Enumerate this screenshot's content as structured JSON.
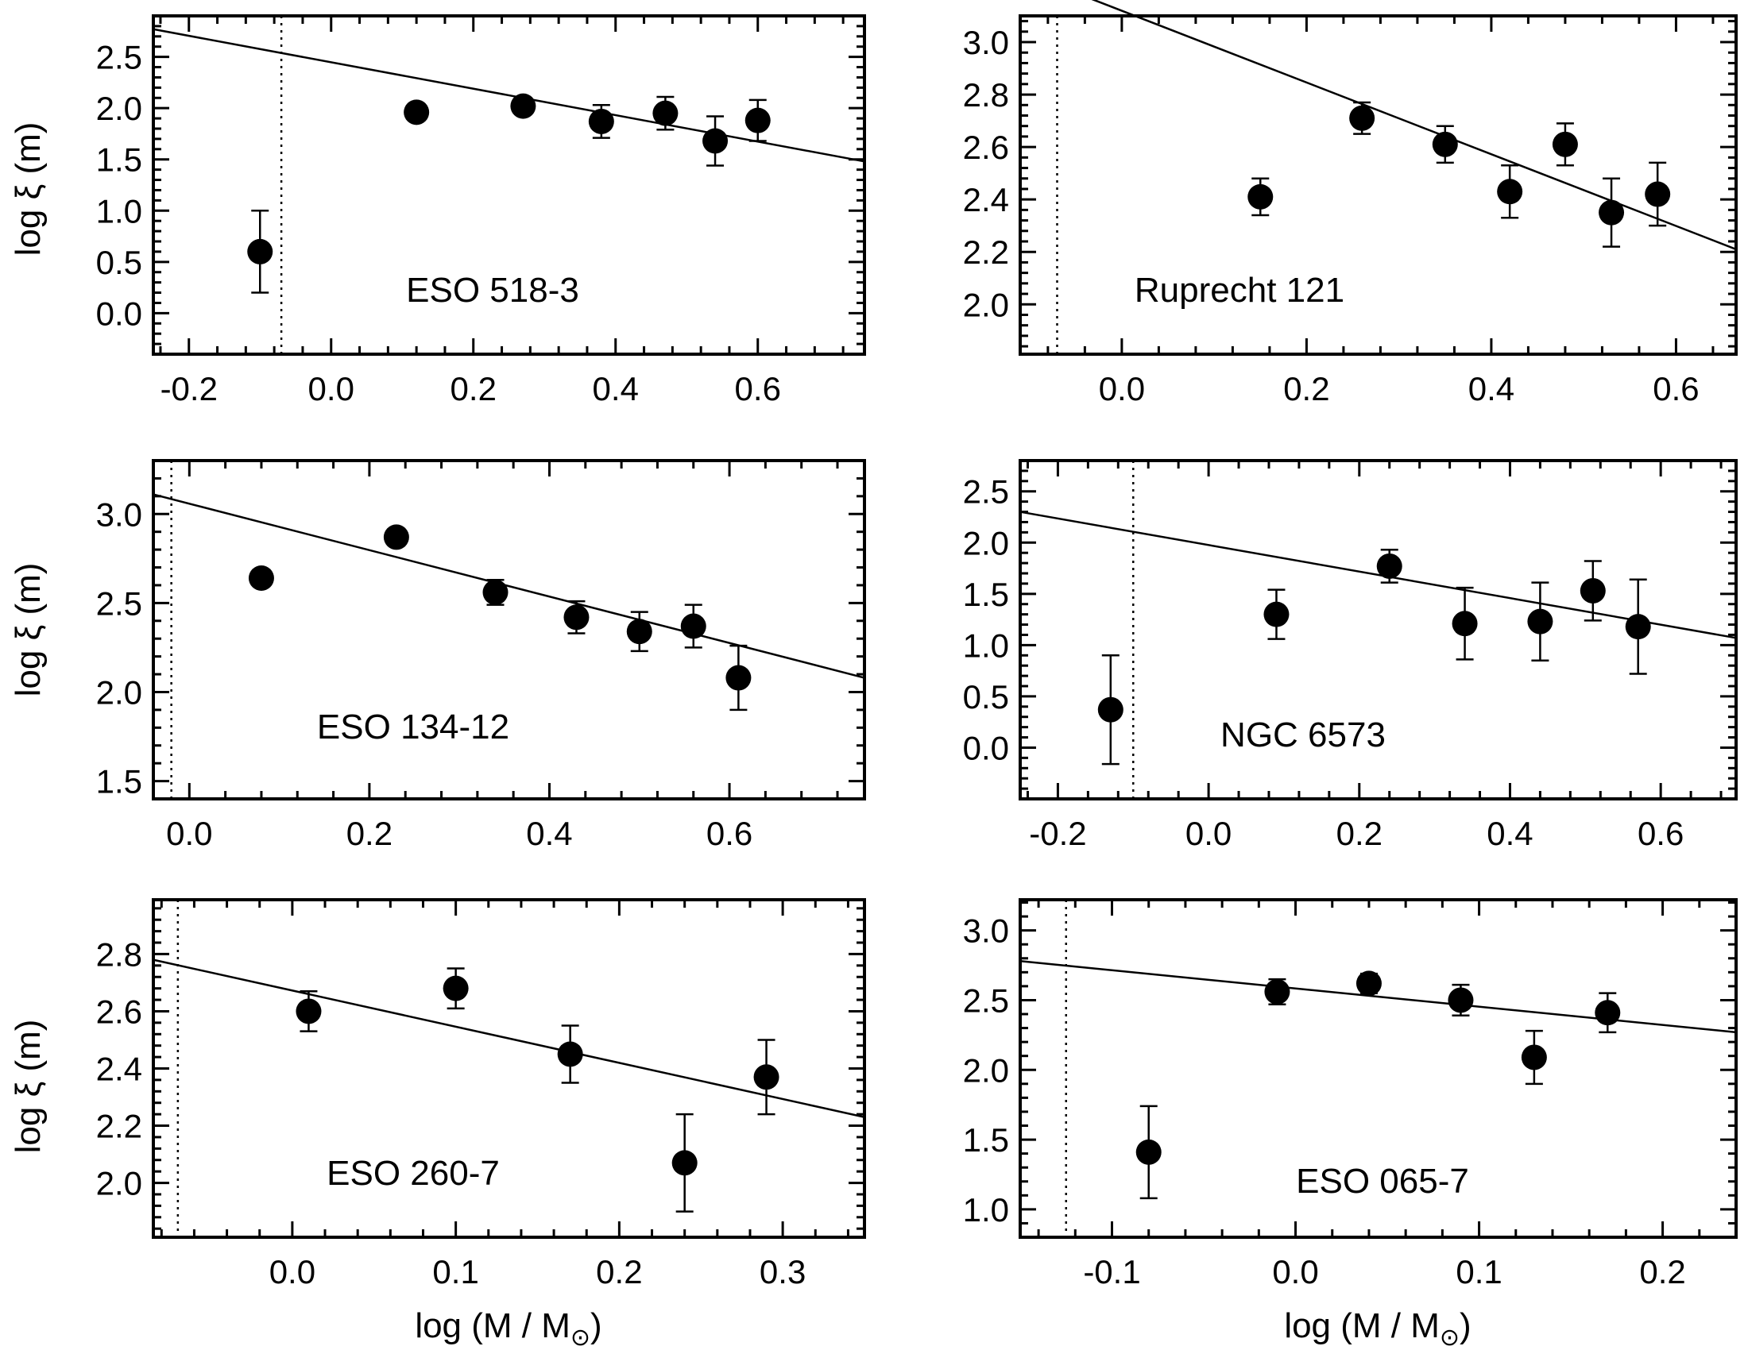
{
  "figure": {
    "xlabel": "log (M / M",
    "xlabel_sub": "⊙",
    "xlabel_close": ")",
    "ylabel": "log ξ (m)"
  },
  "chart_data": [
    {
      "type": "scatter",
      "title": "ESO 518-3",
      "xlabel": "",
      "ylabel": "log ξ (m)",
      "xlim": [
        -0.25,
        0.75
      ],
      "ylim": [
        -0.4,
        2.9
      ],
      "xticks": [
        -0.2,
        0.0,
        0.2,
        0.4,
        0.6
      ],
      "yticks": [
        0.0,
        0.5,
        1.0,
        1.5,
        2.0,
        2.5
      ],
      "tick_decimals": 1,
      "x": [
        -0.1,
        0.12,
        0.27,
        0.38,
        0.47,
        0.54,
        0.6
      ],
      "y": [
        0.6,
        1.96,
        2.02,
        1.87,
        1.95,
        1.68,
        1.88
      ],
      "yerr": [
        0.4,
        0.05,
        0.08,
        0.16,
        0.16,
        0.24,
        0.2
      ],
      "fit_line": [
        [
          -0.25,
          2.77
        ],
        [
          0.75,
          1.48
        ]
      ],
      "cutoff_x": -0.07
    },
    {
      "type": "scatter",
      "title": "Ruprecht 121",
      "xlabel": "",
      "ylabel": "",
      "xlim": [
        -0.11,
        0.665
      ],
      "ylim": [
        1.81,
        3.1
      ],
      "xticks": [
        0.0,
        0.2,
        0.4,
        0.6
      ],
      "yticks": [
        2.0,
        2.2,
        2.4,
        2.6,
        2.8,
        3.0
      ],
      "tick_decimals": 1,
      "x": [
        0.15,
        0.26,
        0.35,
        0.42,
        0.48,
        0.53,
        0.58
      ],
      "y": [
        2.41,
        2.71,
        2.61,
        2.43,
        2.61,
        2.35,
        2.42
      ],
      "yerr": [
        0.07,
        0.06,
        0.07,
        0.1,
        0.08,
        0.13,
        0.12
      ],
      "fit_line": [
        [
          -0.11,
          3.27
        ],
        [
          0.665,
          2.21
        ]
      ],
      "cutoff_x": -0.07
    },
    {
      "type": "scatter",
      "title": "ESO 134-12",
      "xlabel": "",
      "ylabel": "log ξ (m)",
      "xlim": [
        -0.04,
        0.75
      ],
      "ylim": [
        1.4,
        3.3
      ],
      "xticks": [
        0.0,
        0.2,
        0.4,
        0.6
      ],
      "yticks": [
        1.5,
        2.0,
        2.5,
        3.0
      ],
      "tick_decimals": 1,
      "x": [
        0.08,
        0.23,
        0.34,
        0.43,
        0.5,
        0.56,
        0.61
      ],
      "y": [
        2.64,
        2.87,
        2.56,
        2.42,
        2.34,
        2.37,
        2.08
      ],
      "yerr": [
        0.0,
        0.0,
        0.07,
        0.09,
        0.11,
        0.12,
        0.18
      ],
      "fit_line": [
        [
          -0.04,
          3.11
        ],
        [
          0.75,
          2.08
        ]
      ],
      "cutoff_x": -0.02
    },
    {
      "type": "scatter",
      "title": "NGC 6573",
      "xlabel": "",
      "ylabel": "",
      "xlim": [
        -0.25,
        0.7
      ],
      "ylim": [
        -0.5,
        2.8
      ],
      "xticks": [
        -0.2,
        0.0,
        0.2,
        0.4,
        0.6
      ],
      "yticks": [
        0.0,
        0.5,
        1.0,
        1.5,
        2.0,
        2.5
      ],
      "tick_decimals": 1,
      "x": [
        -0.13,
        0.09,
        0.24,
        0.34,
        0.44,
        0.51,
        0.57
      ],
      "y": [
        0.37,
        1.3,
        1.77,
        1.21,
        1.23,
        1.53,
        1.18
      ],
      "yerr": [
        0.53,
        0.24,
        0.16,
        0.35,
        0.38,
        0.29,
        0.46
      ],
      "fit_line": [
        [
          -0.25,
          2.3
        ],
        [
          0.7,
          1.07
        ]
      ],
      "cutoff_x": -0.1
    },
    {
      "type": "scatter",
      "title": "ESO 260-7",
      "xlabel": "log (M / M⊙)",
      "ylabel": "log ξ (m)",
      "xlim": [
        -0.085,
        0.35
      ],
      "ylim": [
        1.81,
        2.99
      ],
      "xticks": [
        0.0,
        0.1,
        0.2,
        0.3
      ],
      "yticks": [
        2.0,
        2.2,
        2.4,
        2.6,
        2.8
      ],
      "tick_decimals": 1,
      "x": [
        0.01,
        0.1,
        0.17,
        0.24,
        0.29
      ],
      "y": [
        2.6,
        2.68,
        2.45,
        2.07,
        2.37
      ],
      "yerr": [
        0.07,
        0.07,
        0.1,
        0.17,
        0.13
      ],
      "fit_line": [
        [
          -0.085,
          2.78
        ],
        [
          0.35,
          2.23
        ]
      ],
      "cutoff_x": -0.07
    },
    {
      "type": "scatter",
      "title": "ESO 065-7",
      "xlabel": "log (M / M⊙)",
      "ylabel": "",
      "xlim": [
        -0.15,
        0.24
      ],
      "ylim": [
        0.8,
        3.22
      ],
      "xticks": [
        -0.1,
        0.0,
        0.1,
        0.2
      ],
      "yticks": [
        1.0,
        1.5,
        2.0,
        2.5,
        3.0
      ],
      "tick_decimals": 1,
      "x": [
        -0.08,
        -0.01,
        0.04,
        0.09,
        0.13,
        0.17
      ],
      "y": [
        1.41,
        2.56,
        2.62,
        2.5,
        2.09,
        2.41
      ],
      "yerr": [
        0.33,
        0.09,
        0.07,
        0.11,
        0.19,
        0.14
      ],
      "fit_line": [
        [
          -0.15,
          2.78
        ],
        [
          0.24,
          2.27
        ]
      ],
      "cutoff_x": -0.125
    }
  ]
}
